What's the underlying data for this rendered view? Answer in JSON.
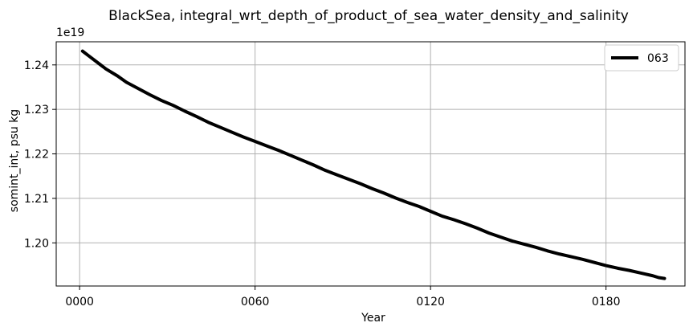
{
  "chart_data": {
    "type": "line",
    "title": "BlackSea, integral_wrt_depth_of_product_of_sea_water_density_and_salinity",
    "xlabel": "Year",
    "ylabel": "somint_int, psu kg",
    "y_offset_label": "1e19",
    "xlim": [
      -8,
      207
    ],
    "ylim": [
      1.1903,
      1.2452
    ],
    "x_ticks": [
      0,
      60,
      120,
      180
    ],
    "x_tick_labels": [
      "0000",
      "0060",
      "0120",
      "0180"
    ],
    "y_ticks": [
      1.2,
      1.21,
      1.22,
      1.23,
      1.24
    ],
    "y_tick_labels": [
      "1.20",
      "1.21",
      "1.22",
      "1.23",
      "1.24"
    ],
    "grid": true,
    "legend_position": "top-right",
    "series": [
      {
        "name": "063",
        "color": "#000000",
        "x": [
          1,
          3,
          6,
          9,
          13,
          16,
          20,
          24,
          28,
          32,
          36,
          40,
          44,
          48,
          52,
          56,
          60,
          64,
          68,
          72,
          76,
          80,
          84,
          88,
          92,
          96,
          100,
          104,
          108,
          112,
          116,
          120,
          124,
          128,
          132,
          136,
          140,
          144,
          148,
          152,
          156,
          160,
          164,
          168,
          172,
          176,
          180,
          184,
          188,
          192,
          196,
          198,
          200
        ],
        "values": [
          1.2431,
          1.2421,
          1.2406,
          1.2391,
          1.2375,
          1.2361,
          1.2347,
          1.2333,
          1.232,
          1.2309,
          1.2296,
          1.2284,
          1.2271,
          1.226,
          1.2249,
          1.2238,
          1.2228,
          1.2218,
          1.2208,
          1.2197,
          1.2186,
          1.2175,
          1.2163,
          1.2153,
          1.2143,
          1.2133,
          1.2122,
          1.2112,
          1.2101,
          1.2091,
          1.2082,
          1.2071,
          1.206,
          1.2052,
          1.2043,
          1.2033,
          1.2022,
          1.2013,
          1.2004,
          1.1997,
          1.199,
          1.1982,
          1.1975,
          1.1969,
          1.1963,
          1.1956,
          1.1949,
          1.1943,
          1.1938,
          1.1932,
          1.1926,
          1.1922,
          1.192
        ]
      }
    ]
  }
}
